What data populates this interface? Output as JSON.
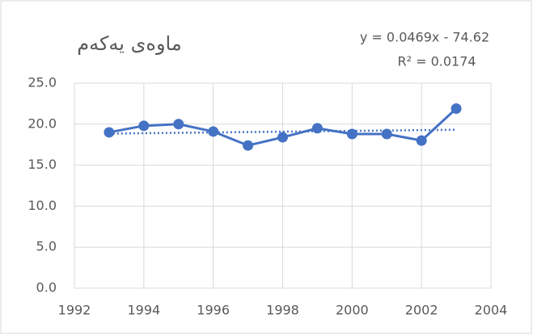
{
  "chart_data": {
    "type": "line",
    "title": "ماوەی یەکەم",
    "x": [
      1993,
      1994,
      1995,
      1996,
      1997,
      1998,
      1999,
      2000,
      2001,
      2002,
      2003
    ],
    "series": [
      {
        "color": "#4472c4",
        "values": [
          19.0,
          19.8,
          20.0,
          19.1,
          17.4,
          18.4,
          19.5,
          18.8,
          18.8,
          18.0,
          21.9
        ]
      }
    ],
    "trendline": {
      "equation": "y = 0.0469x - 74.62",
      "r_squared": "R² = 0.0174",
      "x": [
        1993,
        2003
      ],
      "values": [
        18.85,
        19.32
      ],
      "color": "#4472c4"
    },
    "xlim": [
      1992,
      2004
    ],
    "xticks": [
      1992,
      1994,
      1996,
      1998,
      2000,
      2002,
      2004
    ],
    "ylim": [
      0,
      25
    ],
    "yticks": [
      {
        "value": 0,
        "label": "0.0"
      },
      {
        "value": 5,
        "label": "5.0"
      },
      {
        "value": 10,
        "label": "10.0"
      },
      {
        "value": 15,
        "label": "15.0"
      },
      {
        "value": 20,
        "label": "20.0"
      },
      {
        "value": 25,
        "label": "25.0"
      }
    ],
    "grid": true
  }
}
